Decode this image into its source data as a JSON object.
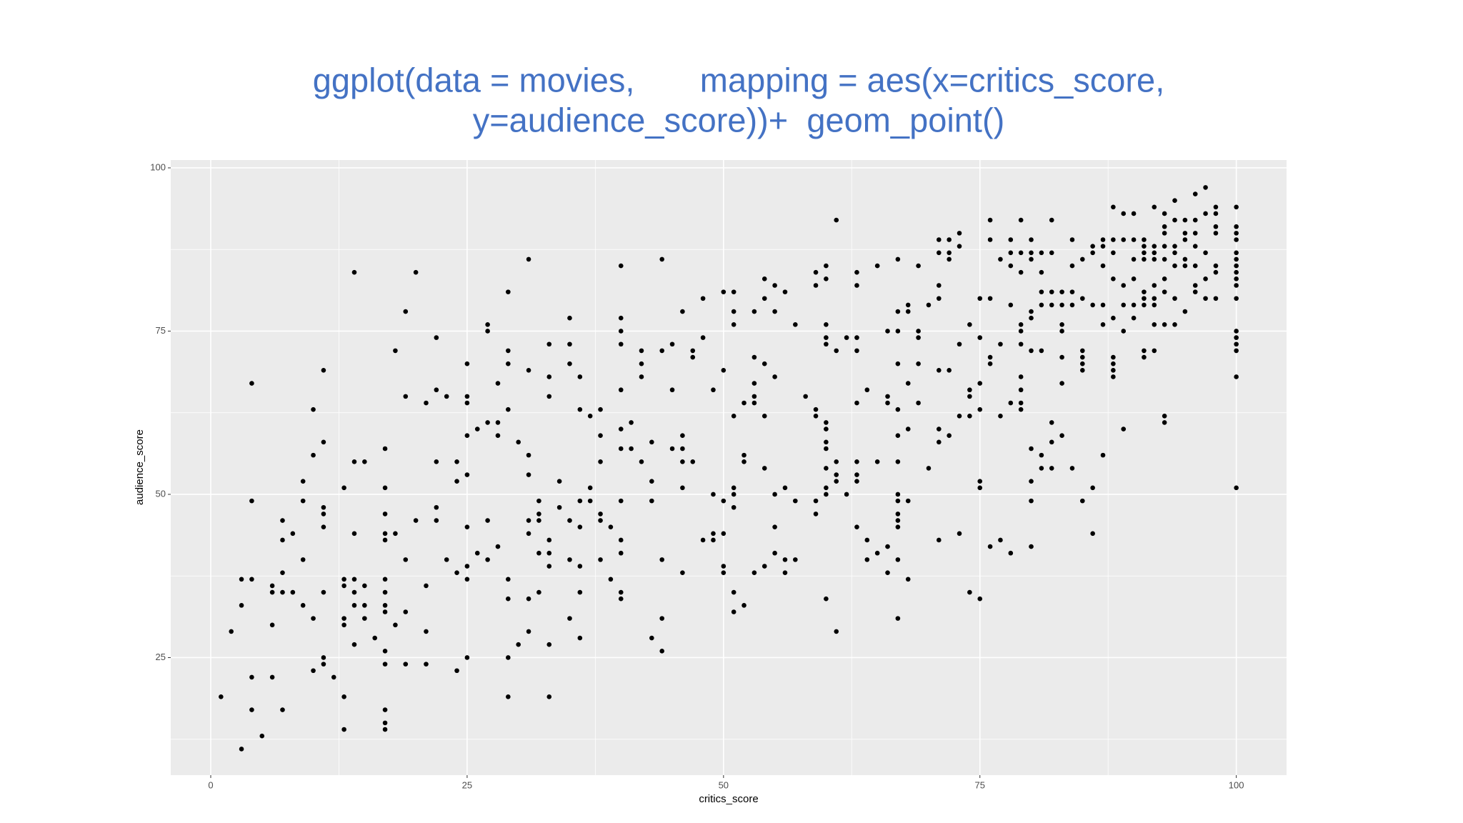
{
  "chart_data": {
    "type": "scatter",
    "title": [
      "ggplot(data = movies,       mapping = aes(x=critics_score,",
      "y=audience_score))+  geom_point()"
    ],
    "x_label": "critics_score",
    "y_label": "audience_score",
    "xlim": [
      -3.9,
      104.9
    ],
    "ylim": [
      7,
      101.2
    ],
    "xticks": [
      0,
      25,
      50,
      75,
      100
    ],
    "yticks": [
      25,
      50,
      75,
      100
    ],
    "xminor": [
      12.5,
      37.5,
      62.5,
      87.5
    ],
    "yminor": [
      12.5,
      37.5,
      62.5,
      87.5
    ],
    "grid": true,
    "color": "#000000",
    "panel_color": "#ebebeb",
    "title_color": "#4472c4",
    "x": [
      1,
      2,
      3,
      3,
      3,
      4,
      4,
      4,
      4,
      4,
      5,
      6,
      6,
      6,
      6,
      7,
      7,
      7,
      7,
      7,
      8,
      8,
      9,
      9,
      9,
      9,
      10,
      10,
      10,
      10,
      11,
      11,
      11,
      11,
      11,
      11,
      11,
      11,
      12,
      13,
      13,
      13,
      13,
      13,
      13,
      13,
      14,
      14,
      14,
      14,
      14,
      14,
      14,
      15,
      15,
      15,
      15,
      16,
      17,
      17,
      17,
      17,
      17,
      17,
      17,
      17,
      17,
      17,
      17,
      17,
      17,
      17,
      18,
      18,
      18,
      19,
      19,
      19,
      19,
      19,
      20,
      20,
      21,
      21,
      21,
      21,
      22,
      22,
      22,
      22,
      22,
      23,
      23,
      24,
      24,
      24,
      24,
      25,
      25,
      25,
      25,
      25,
      25,
      25,
      25,
      25,
      26,
      26,
      27,
      27,
      27,
      27,
      27,
      28,
      28,
      28,
      28,
      29,
      29,
      29,
      29,
      29,
      29,
      29,
      29,
      30,
      30,
      31,
      31,
      31,
      31,
      31,
      31,
      31,
      31,
      32,
      32,
      32,
      32,
      32,
      33,
      33,
      33,
      33,
      33,
      33,
      33,
      33,
      34,
      34,
      35,
      35,
      35,
      35,
      35,
      35,
      36,
      36,
      36,
      36,
      36,
      36,
      36,
      37,
      37,
      37,
      38,
      38,
      38,
      38,
      38,
      38,
      39,
      39,
      40,
      40,
      40,
      40,
      40,
      40,
      40,
      40,
      40,
      40,
      40,
      40,
      41,
      41,
      42,
      42,
      42,
      42,
      43,
      43,
      43,
      43,
      44,
      44,
      44,
      44,
      44,
      45,
      45,
      45,
      46,
      46,
      46,
      46,
      46,
      46,
      47,
      47,
      47,
      48,
      48,
      48,
      49,
      49,
      49,
      49,
      50,
      50,
      50,
      50,
      50,
      50,
      51,
      51,
      51,
      51,
      51,
      51,
      51,
      51,
      51,
      52,
      52,
      52,
      52,
      53,
      53,
      53,
      53,
      53,
      53,
      54,
      54,
      54,
      54,
      54,
      54,
      55,
      55,
      55,
      55,
      55,
      55,
      56,
      56,
      56,
      56,
      57,
      57,
      57,
      58,
      59,
      59,
      59,
      59,
      59,
      59,
      60,
      60,
      60,
      60,
      60,
      60,
      60,
      60,
      60,
      60,
      60,
      60,
      60,
      61,
      61,
      61,
      61,
      61,
      61,
      62,
      62,
      63,
      63,
      63,
      63,
      63,
      63,
      63,
      63,
      63,
      64,
      64,
      64,
      65,
      65,
      65,
      66,
      66,
      66,
      66,
      66,
      67,
      67,
      67,
      67,
      67,
      67,
      67,
      67,
      67,
      67,
      67,
      67,
      67,
      67,
      68,
      68,
      68,
      68,
      68,
      68,
      69,
      69,
      69,
      69,
      69,
      70,
      70,
      71,
      71,
      71,
      71,
      71,
      71,
      71,
      71,
      72,
      72,
      72,
      72,
      72,
      73,
      73,
      73,
      73,
      73,
      74,
      74,
      74,
      74,
      74,
      75,
      75,
      75,
      75,
      75,
      75,
      75,
      76,
      76,
      76,
      76,
      76,
      76,
      77,
      77,
      77,
      77,
      78,
      78,
      78,
      78,
      78,
      78,
      79,
      79,
      79,
      79,
      79,
      79,
      79,
      79,
      79,
      79,
      80,
      80,
      80,
      80,
      80,
      80,
      80,
      80,
      80,
      80,
      81,
      81,
      81,
      81,
      81,
      81,
      81,
      82,
      82,
      82,
      82,
      82,
      82,
      82,
      83,
      83,
      83,
      83,
      83,
      83,
      83,
      84,
      84,
      84,
      84,
      84,
      85,
      85,
      85,
      85,
      85,
      85,
      85,
      86,
      86,
      86,
      86,
      86,
      87,
      87,
      87,
      87,
      87,
      87,
      88,
      88,
      88,
      88,
      88,
      88,
      88,
      88,
      88,
      89,
      89,
      89,
      89,
      89,
      89,
      90,
      90,
      90,
      90,
      90,
      90,
      91,
      91,
      91,
      91,
      91,
      91,
      91,
      91,
      91,
      92,
      92,
      92,
      92,
      92,
      92,
      92,
      92,
      92,
      93,
      93,
      93,
      93,
      93,
      93,
      93,
      93,
      93,
      93,
      94,
      94,
      94,
      94,
      94,
      94,
      94,
      95,
      95,
      95,
      95,
      95,
      95,
      96,
      96,
      96,
      96,
      96,
      96,
      96,
      97,
      97,
      97,
      97,
      97,
      98,
      98,
      98,
      98,
      98,
      98,
      98,
      100,
      100,
      100,
      100,
      100,
      100,
      100,
      100,
      100,
      100,
      100,
      100,
      100,
      100,
      100,
      100,
      100
    ],
    "values": [
      19,
      29,
      37,
      33,
      11,
      67,
      49,
      37,
      22,
      17,
      13,
      36,
      35,
      30,
      22,
      46,
      43,
      38,
      35,
      17,
      44,
      35,
      52,
      49,
      40,
      33,
      63,
      56,
      31,
      23,
      69,
      58,
      48,
      47,
      45,
      35,
      25,
      24,
      22,
      51,
      37,
      36,
      31,
      30,
      19,
      14,
      84,
      55,
      44,
      37,
      35,
      33,
      27,
      55,
      36,
      33,
      31,
      28,
      57,
      51,
      47,
      44,
      43,
      37,
      35,
      33,
      32,
      26,
      24,
      17,
      15,
      14,
      72,
      44,
      30,
      78,
      65,
      40,
      32,
      24,
      84,
      46,
      64,
      36,
      29,
      24,
      74,
      66,
      55,
      48,
      46,
      65,
      40,
      55,
      52,
      38,
      23,
      70,
      65,
      64,
      59,
      53,
      45,
      39,
      37,
      25,
      60,
      41,
      76,
      75,
      61,
      46,
      40,
      67,
      61,
      59,
      42,
      81,
      72,
      70,
      63,
      37,
      34,
      25,
      19,
      58,
      27,
      86,
      69,
      56,
      53,
      46,
      44,
      34,
      29,
      49,
      47,
      46,
      41,
      35,
      73,
      68,
      65,
      43,
      41,
      39,
      27,
      19,
      52,
      48,
      77,
      73,
      70,
      46,
      40,
      31,
      68,
      63,
      49,
      45,
      39,
      35,
      28,
      62,
      51,
      49,
      63,
      59,
      55,
      47,
      46,
      40,
      45,
      37,
      85,
      77,
      75,
      73,
      66,
      60,
      57,
      49,
      43,
      41,
      35,
      34,
      61,
      57,
      72,
      70,
      68,
      55,
      58,
      52,
      49,
      28,
      86,
      72,
      40,
      31,
      26,
      73,
      66,
      57,
      78,
      59,
      57,
      55,
      51,
      38,
      72,
      71,
      55,
      80,
      74,
      43,
      66,
      50,
      44,
      43,
      81,
      69,
      49,
      44,
      39,
      38,
      81,
      78,
      76,
      62,
      51,
      50,
      48,
      35,
      32,
      64,
      56,
      55,
      33,
      78,
      71,
      67,
      65,
      64,
      38,
      83,
      80,
      70,
      62,
      54,
      39,
      82,
      78,
      68,
      50,
      45,
      41,
      81,
      51,
      40,
      38,
      76,
      49,
      40,
      65,
      84,
      82,
      63,
      62,
      49,
      47,
      85,
      83,
      76,
      74,
      73,
      61,
      60,
      58,
      57,
      54,
      51,
      50,
      34,
      92,
      72,
      55,
      53,
      52,
      29,
      74,
      50,
      84,
      82,
      74,
      72,
      64,
      55,
      53,
      52,
      45,
      66,
      43,
      40,
      85,
      55,
      41,
      75,
      65,
      64,
      42,
      38,
      86,
      78,
      75,
      70,
      63,
      59,
      55,
      50,
      49,
      47,
      46,
      45,
      40,
      31,
      79,
      78,
      67,
      60,
      49,
      37,
      85,
      75,
      74,
      70,
      64,
      79,
      54,
      89,
      87,
      82,
      80,
      69,
      60,
      58,
      43,
      89,
      87,
      86,
      69,
      59,
      90,
      88,
      73,
      62,
      44,
      76,
      66,
      65,
      62,
      35,
      80,
      74,
      67,
      63,
      52,
      51,
      34,
      92,
      89,
      80,
      71,
      70,
      42,
      86,
      73,
      62,
      43,
      89,
      87,
      85,
      79,
      64,
      41,
      92,
      87,
      84,
      76,
      75,
      73,
      68,
      66,
      64,
      63,
      89,
      87,
      86,
      78,
      77,
      72,
      57,
      52,
      49,
      42,
      87,
      84,
      81,
      79,
      72,
      56,
      54,
      92,
      87,
      81,
      79,
      61,
      58,
      54,
      81,
      79,
      76,
      75,
      71,
      67,
      59,
      89,
      85,
      81,
      79,
      54,
      86,
      80,
      72,
      71,
      70,
      69,
      49,
      88,
      87,
      79,
      51,
      44,
      89,
      88,
      85,
      79,
      76,
      56,
      94,
      89,
      87,
      83,
      77,
      71,
      70,
      69,
      68,
      93,
      89,
      82,
      79,
      75,
      60,
      93,
      89,
      86,
      83,
      79,
      77,
      89,
      88,
      87,
      86,
      81,
      80,
      79,
      72,
      71,
      94,
      88,
      87,
      86,
      82,
      80,
      79,
      76,
      72,
      93,
      91,
      90,
      88,
      86,
      83,
      81,
      76,
      62,
      61,
      95,
      92,
      88,
      87,
      85,
      80,
      76,
      92,
      90,
      89,
      86,
      85,
      78,
      96,
      92,
      90,
      88,
      85,
      82,
      81,
      97,
      93,
      87,
      83,
      80,
      94,
      93,
      91,
      90,
      85,
      84,
      80,
      94,
      91,
      90,
      89,
      87,
      86,
      85,
      84,
      83,
      82,
      80,
      75,
      74,
      73,
      72,
      68,
      51
    ]
  }
}
